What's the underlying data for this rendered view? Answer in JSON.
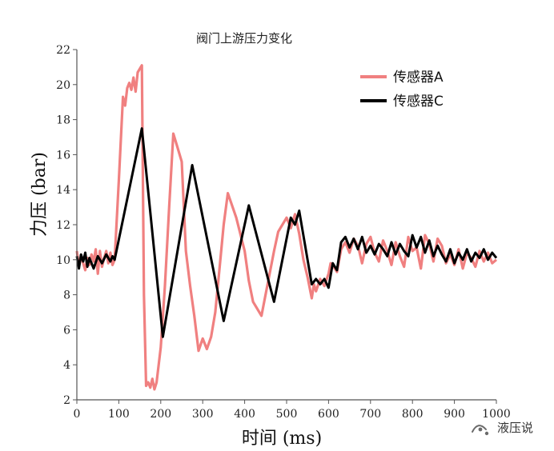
{
  "chart_data": {
    "type": "line",
    "title": "阀门上游压力变化",
    "xlabel": "时间 (ms)",
    "ylabel": "力压 (bar)",
    "xlim": [
      0,
      1000
    ],
    "ylim": [
      2,
      22
    ],
    "xticks": [
      "0",
      "100",
      "200",
      "300",
      "400",
      "500",
      "600",
      "700",
      "800",
      "900",
      "1000"
    ],
    "yticks": [
      "2",
      "4",
      "6",
      "8",
      "10",
      "12",
      "14",
      "16",
      "18",
      "20",
      "22"
    ],
    "grid": false,
    "legend_position": "top-right",
    "series": [
      {
        "name": "传感器A",
        "color": "#f08080",
        "x": [
          0,
          5,
          10,
          15,
          20,
          25,
          30,
          35,
          40,
          45,
          50,
          55,
          60,
          65,
          70,
          75,
          80,
          85,
          90,
          100,
          110,
          115,
          120,
          125,
          130,
          135,
          140,
          145,
          150,
          155,
          160,
          165,
          170,
          175,
          180,
          185,
          190,
          200,
          210,
          220,
          230,
          240,
          250,
          260,
          270,
          280,
          290,
          300,
          310,
          320,
          330,
          340,
          350,
          360,
          380,
          400,
          410,
          420,
          440,
          470,
          480,
          500,
          510,
          520,
          530,
          540,
          550,
          560,
          565,
          570,
          580,
          590,
          600,
          605,
          610,
          620,
          630,
          640,
          650,
          660,
          670,
          680,
          690,
          700,
          710,
          720,
          730,
          740,
          750,
          760,
          770,
          780,
          790,
          800,
          810,
          820,
          830,
          840,
          850,
          860,
          870,
          880,
          890,
          900,
          910,
          920,
          930,
          940,
          950,
          960,
          970,
          980,
          990,
          1000
        ],
        "y": [
          10.5,
          9.6,
          10.2,
          9.8,
          9.4,
          10.1,
          9.7,
          10.3,
          9.9,
          10.6,
          9.2,
          10.5,
          9.6,
          10.1,
          10.5,
          9.8,
          10.4,
          9.7,
          10.0,
          14.5,
          19.3,
          18.8,
          19.8,
          20.1,
          19.7,
          20.4,
          19.6,
          20.7,
          20.9,
          21.1,
          8.0,
          2.8,
          3.0,
          2.7,
          3.2,
          2.6,
          3.0,
          5.0,
          8.5,
          13.0,
          17.2,
          16.4,
          15.6,
          10.5,
          8.5,
          6.8,
          4.8,
          5.5,
          4.9,
          5.6,
          7.0,
          9.5,
          12.0,
          13.8,
          12.4,
          10.5,
          8.8,
          7.6,
          6.8,
          10.5,
          11.6,
          12.4,
          11.8,
          12.6,
          11.5,
          10.0,
          9.0,
          7.8,
          8.6,
          8.2,
          8.9,
          8.5,
          9.2,
          9.8,
          9.7,
          9.3,
          10.6,
          11.0,
          10.4,
          11.2,
          10.8,
          9.8,
          10.9,
          11.3,
          10.4,
          9.9,
          11.1,
          10.5,
          9.7,
          11.0,
          10.2,
          9.6,
          11.3,
          10.5,
          10.7,
          9.5,
          11.4,
          10.9,
          9.9,
          11.2,
          10.8,
          9.8,
          10.3,
          9.7,
          10.6,
          9.5,
          10.4,
          10.1,
          9.6,
          10.5,
          9.9,
          10.4,
          9.8,
          10.0
        ]
      },
      {
        "name": "传感器C",
        "color": "#000000",
        "x": [
          0,
          5,
          10,
          15,
          20,
          25,
          30,
          40,
          50,
          60,
          70,
          80,
          85,
          90,
          155,
          205,
          275,
          350,
          410,
          470,
          510,
          520,
          530,
          560,
          570,
          580,
          590,
          600,
          610,
          620,
          630,
          640,
          650,
          660,
          670,
          680,
          690,
          700,
          710,
          720,
          730,
          740,
          750,
          760,
          770,
          780,
          790,
          800,
          810,
          820,
          830,
          840,
          850,
          860,
          870,
          880,
          890,
          900,
          910,
          920,
          930,
          940,
          950,
          960,
          970,
          980,
          990,
          1000
        ],
        "y": [
          10.2,
          9.5,
          10.3,
          9.9,
          10.4,
          9.6,
          10.1,
          9.5,
          10.2,
          9.8,
          10.3,
          9.9,
          10.2,
          10.0,
          17.5,
          5.6,
          15.4,
          6.5,
          13.1,
          7.6,
          12.4,
          12.0,
          12.8,
          8.6,
          8.9,
          8.6,
          8.9,
          8.4,
          9.8,
          9.4,
          11.0,
          11.3,
          10.7,
          11.2,
          10.6,
          11.3,
          10.4,
          10.8,
          10.3,
          10.9,
          10.6,
          10.2,
          11.0,
          10.3,
          10.9,
          10.5,
          10.2,
          11.4,
          10.7,
          11.3,
          10.4,
          11.1,
          10.2,
          10.8,
          10.3,
          9.9,
          10.6,
          9.8,
          10.4,
          10.0,
          10.6,
          9.9,
          10.4,
          10.1,
          10.6,
          10.0,
          10.4,
          10.1
        ]
      }
    ],
    "watermark": "液压说"
  }
}
